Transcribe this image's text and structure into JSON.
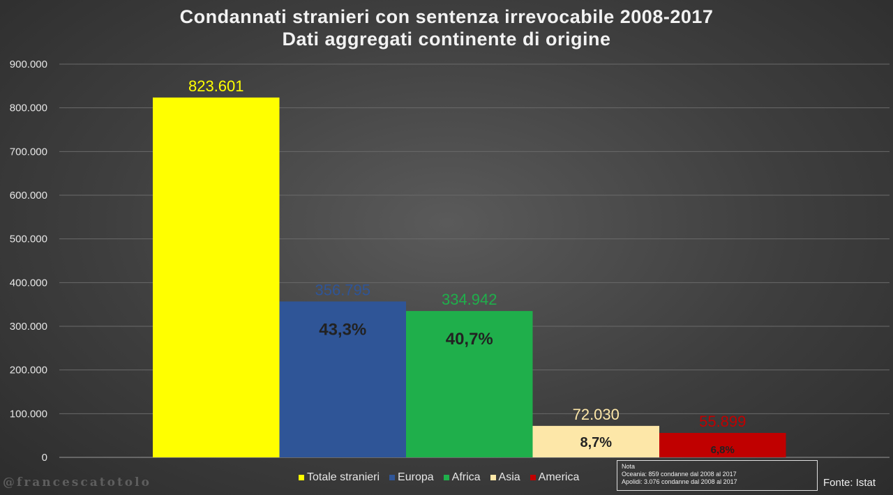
{
  "chart_data": {
    "type": "bar",
    "title": "Condannati stranieri con sentenza irrevocabile 2008-2017",
    "subtitle": "Dati aggregati continente di origine",
    "categories": [
      "Totale stranieri",
      "Europa",
      "Africa",
      "Asia",
      "America"
    ],
    "values": [
      823601,
      356795,
      334942,
      72030,
      55899
    ],
    "value_labels": [
      "823.601",
      "356.795",
      "334.942",
      "72.030",
      "55.899"
    ],
    "percent_labels": [
      "",
      "43,3%",
      "40,7%",
      "8,7%",
      "6,8%"
    ],
    "colors": [
      "#ffff00",
      "#2f5597",
      "#1faf4b",
      "#fde7a8",
      "#c00000"
    ],
    "label_colors": [
      "#ffff00",
      "#2f5597",
      "#1faf4b",
      "#fde7a8",
      "#c00000"
    ],
    "ylim": [
      0,
      900000
    ],
    "yticks": [
      0,
      100000,
      200000,
      300000,
      400000,
      500000,
      600000,
      700000,
      800000,
      900000
    ],
    "ytick_labels": [
      "0",
      "100.000",
      "200.000",
      "300.000",
      "400.000",
      "500.000",
      "600.000",
      "700.000",
      "800.000",
      "900.000"
    ],
    "grid": true,
    "legend": "bottom"
  },
  "note": {
    "heading": "Nota",
    "lines": [
      "Oceania: 859 condanne dal 2008 al 2017",
      "Apolidi: 3.076 condanne dal 2008 al 2017"
    ]
  },
  "source": "Fonte: Istat",
  "watermark": "@francescatotolo"
}
